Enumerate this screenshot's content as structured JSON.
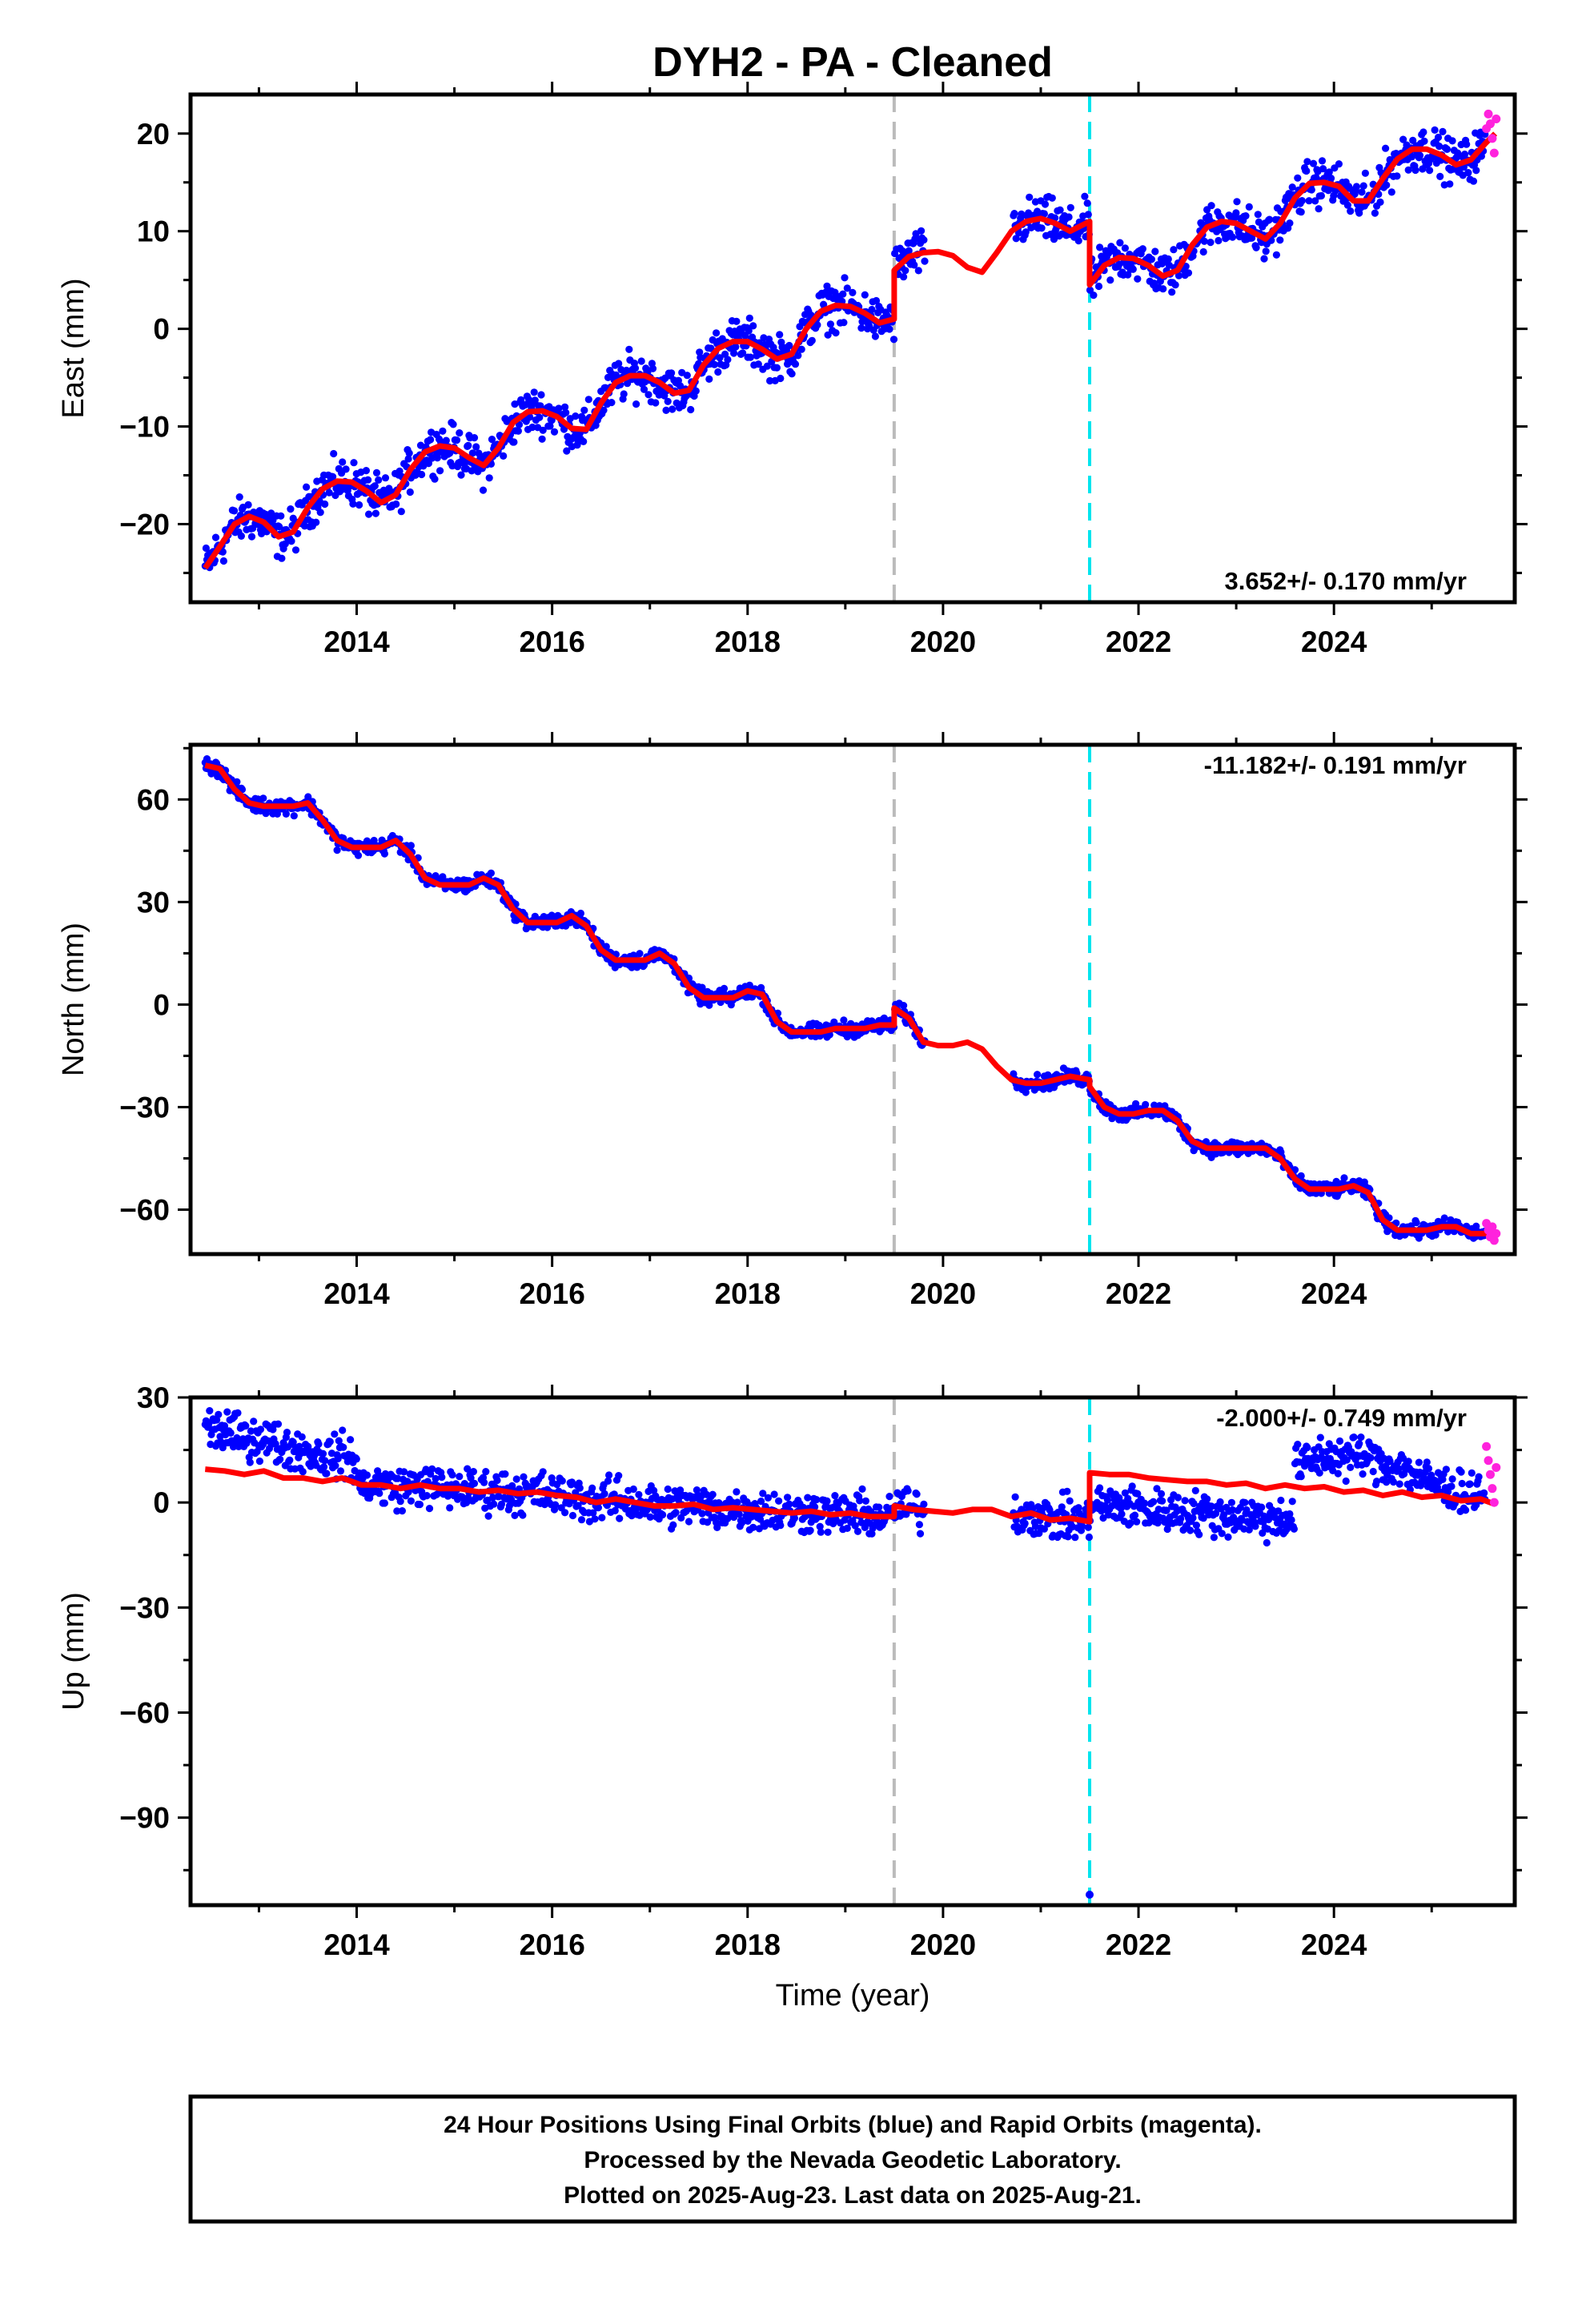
{
  "title": "DYH2  - PA - Cleaned",
  "footer": {
    "lines": [
      "24 Hour Positions Using Final Orbits (blue) and Rapid Orbits (magenta).",
      "Processed by the Nevada Geodetic Laboratory.",
      "Plotted on 2025-Aug-23. Last data on 2025-Aug-21."
    ]
  },
  "colors": {
    "final": "#0000ff",
    "rapid": "#ff22dd",
    "model": "#ff0000",
    "event_gray": "#bbbbbb",
    "event_cyan": "#00e5ee"
  },
  "chart_data": [
    {
      "type": "scatter",
      "ylabel": "East (mm)",
      "xlabel": "",
      "xlim": [
        2012.3,
        2025.85
      ],
      "ylim": [
        -28,
        24
      ],
      "yticks": [
        20,
        10,
        0,
        -10,
        -20
      ],
      "xticks": [
        2014,
        2016,
        2018,
        2020,
        2022,
        2024
      ],
      "rate_label": "3.652+/- 0.170 mm/yr",
      "rate_position": "bottom-right",
      "event_lines": [
        {
          "x": 2019.5,
          "color": "gray",
          "style": "dashed"
        },
        {
          "x": 2021.5,
          "color": "cyan",
          "style": "dashed"
        }
      ],
      "model": {
        "x": [
          2012.45,
          2012.6,
          2012.75,
          2012.9,
          2013.05,
          2013.2,
          2013.35,
          2013.5,
          2013.65,
          2013.8,
          2013.95,
          2014.1,
          2014.25,
          2014.4,
          2014.55,
          2014.7,
          2014.85,
          2015.0,
          2015.15,
          2015.3,
          2015.45,
          2015.6,
          2015.75,
          2015.9,
          2016.05,
          2016.2,
          2016.35,
          2016.5,
          2016.65,
          2016.8,
          2016.95,
          2017.1,
          2017.25,
          2017.4,
          2017.55,
          2017.7,
          2017.85,
          2018.0,
          2018.15,
          2018.3,
          2018.45,
          2018.6,
          2018.75,
          2018.9,
          2019.05,
          2019.2,
          2019.35,
          2019.5,
          2019.5,
          2019.65,
          2019.8,
          2019.95,
          2020.1,
          2020.25,
          2020.4,
          2020.55,
          2020.7,
          2020.85,
          2021.0,
          2021.15,
          2021.3,
          2021.5,
          2021.5,
          2021.65,
          2021.8,
          2021.95,
          2022.1,
          2022.25,
          2022.4,
          2022.55,
          2022.7,
          2022.85,
          2023.0,
          2023.15,
          2023.3,
          2023.45,
          2023.6,
          2023.75,
          2023.9,
          2024.05,
          2024.2,
          2024.35,
          2024.5,
          2024.65,
          2024.8,
          2024.95,
          2025.1,
          2025.25,
          2025.4,
          2025.55,
          2025.65
        ],
        "y": [
          -24.5,
          -22.3,
          -20.0,
          -19.2,
          -19.8,
          -21.3,
          -20.8,
          -18.3,
          -16.4,
          -15.6,
          -15.7,
          -16.6,
          -17.8,
          -17.0,
          -14.4,
          -12.6,
          -12.0,
          -12.2,
          -13.2,
          -14.0,
          -12.2,
          -9.6,
          -8.5,
          -8.4,
          -9.0,
          -10.2,
          -10.3,
          -7.6,
          -5.5,
          -4.8,
          -4.8,
          -5.5,
          -6.6,
          -6.3,
          -3.7,
          -2.0,
          -1.3,
          -1.3,
          -2.1,
          -3.1,
          -2.6,
          0.0,
          1.8,
          2.4,
          2.3,
          1.6,
          0.6,
          1.0,
          6.0,
          7.4,
          7.8,
          7.9,
          7.5,
          6.3,
          5.8,
          7.8,
          10.0,
          11.0,
          11.3,
          10.8,
          10.0,
          11.0,
          4.5,
          6.5,
          7.3,
          7.2,
          6.5,
          5.4,
          6.0,
          8.6,
          10.4,
          11.0,
          10.8,
          10.0,
          9.2,
          10.8,
          13.4,
          14.9,
          15.0,
          14.6,
          13.1,
          13.1,
          15.4,
          17.4,
          18.4,
          18.4,
          17.8,
          16.8,
          17.3,
          19.0,
          20.0
        ]
      },
      "rapid": {
        "x": [
          2025.56,
          2025.58,
          2025.6,
          2025.62,
          2025.64,
          2025.66
        ],
        "y": [
          20.5,
          22.0,
          21.0,
          19.5,
          18.0,
          21.5
        ]
      }
    },
    {
      "type": "scatter",
      "ylabel": "North (mm)",
      "xlabel": "",
      "xlim": [
        2012.3,
        2025.85
      ],
      "ylim": [
        -73,
        76
      ],
      "yticks": [
        60,
        30,
        0,
        -30,
        -60
      ],
      "xticks": [
        2014,
        2016,
        2018,
        2020,
        2022,
        2024
      ],
      "rate_label": "-11.182+/- 0.191 mm/yr",
      "rate_position": "top-right",
      "event_lines": [
        {
          "x": 2019.5,
          "color": "gray",
          "style": "dashed"
        },
        {
          "x": 2021.5,
          "color": "cyan",
          "style": "dashed"
        }
      ],
      "model": {
        "x": [
          2012.45,
          2012.6,
          2012.75,
          2012.9,
          2013.05,
          2013.2,
          2013.35,
          2013.5,
          2013.65,
          2013.8,
          2013.95,
          2014.1,
          2014.25,
          2014.4,
          2014.55,
          2014.7,
          2014.85,
          2015.0,
          2015.15,
          2015.3,
          2015.45,
          2015.6,
          2015.75,
          2015.9,
          2016.05,
          2016.2,
          2016.35,
          2016.5,
          2016.65,
          2016.8,
          2016.95,
          2017.1,
          2017.25,
          2017.4,
          2017.55,
          2017.7,
          2017.85,
          2018.0,
          2018.15,
          2018.3,
          2018.45,
          2018.6,
          2018.75,
          2018.9,
          2019.05,
          2019.2,
          2019.35,
          2019.5,
          2019.5,
          2019.65,
          2019.8,
          2019.95,
          2020.1,
          2020.25,
          2020.4,
          2020.55,
          2020.7,
          2020.85,
          2021.0,
          2021.15,
          2021.3,
          2021.5,
          2021.5,
          2021.65,
          2021.8,
          2021.95,
          2022.1,
          2022.25,
          2022.4,
          2022.55,
          2022.7,
          2022.85,
          2023.0,
          2023.15,
          2023.3,
          2023.45,
          2023.6,
          2023.75,
          2023.9,
          2024.05,
          2024.2,
          2024.35,
          2024.5,
          2024.65,
          2024.8,
          2024.95,
          2025.1,
          2025.25,
          2025.4,
          2025.55,
          2025.65
        ],
        "y": [
          70,
          69,
          63,
          59,
          58,
          58,
          58,
          59,
          54,
          48,
          46,
          46,
          46,
          48,
          44,
          37,
          35,
          35,
          35,
          37,
          35,
          28,
          24,
          24,
          24,
          26,
          23,
          16,
          13,
          13,
          13,
          15,
          12,
          5,
          2,
          2,
          2,
          4,
          3,
          -5,
          -8,
          -8,
          -8,
          -7,
          -7,
          -7,
          -6,
          -6,
          -1,
          -4,
          -11,
          -12,
          -12,
          -11,
          -13,
          -18,
          -22,
          -23,
          -23,
          -22,
          -21,
          -22,
          -24,
          -30,
          -32,
          -32,
          -31,
          -31,
          -34,
          -40,
          -42,
          -42,
          -42,
          -42,
          -42,
          -45,
          -51,
          -54,
          -54,
          -54,
          -53,
          -55,
          -63,
          -66,
          -66,
          -66,
          -65,
          -65,
          -67,
          -67,
          -67
        ]
      },
      "rapid": {
        "x": [
          2025.56,
          2025.58,
          2025.6,
          2025.62,
          2025.64,
          2025.66
        ],
        "y": [
          -64,
          -66,
          -68,
          -65,
          -69,
          -67
        ]
      }
    },
    {
      "type": "scatter",
      "ylabel": "Up (mm)",
      "xlabel": "Time (year)",
      "xlim": [
        2012.3,
        2025.85
      ],
      "ylim": [
        -115,
        30
      ],
      "yticks": [
        30,
        0,
        -30,
        -60,
        -90
      ],
      "xticks": [
        2014,
        2016,
        2018,
        2020,
        2022,
        2024
      ],
      "rate_label": "-2.000+/- 0.749 mm/yr",
      "rate_position": "top-right",
      "event_lines": [
        {
          "x": 2019.5,
          "color": "gray",
          "style": "dashed"
        },
        {
          "x": 2021.5,
          "color": "cyan",
          "style": "dashed"
        }
      ],
      "outlier": {
        "x": 2021.5,
        "y": -112
      },
      "model": {
        "x": [
          2012.45,
          2012.65,
          2012.85,
          2013.05,
          2013.25,
          2013.45,
          2013.65,
          2013.85,
          2014.05,
          2014.25,
          2014.45,
          2014.65,
          2014.85,
          2015.05,
          2015.25,
          2015.45,
          2015.65,
          2015.85,
          2016.05,
          2016.25,
          2016.45,
          2016.65,
          2016.85,
          2017.05,
          2017.25,
          2017.45,
          2017.65,
          2017.85,
          2018.05,
          2018.25,
          2018.45,
          2018.65,
          2018.85,
          2019.05,
          2019.25,
          2019.5,
          2019.5,
          2019.7,
          2019.9,
          2020.1,
          2020.3,
          2020.5,
          2020.7,
          2020.9,
          2021.1,
          2021.3,
          2021.5,
          2021.5,
          2021.7,
          2021.9,
          2022.1,
          2022.3,
          2022.5,
          2022.7,
          2022.9,
          2023.1,
          2023.3,
          2023.5,
          2023.7,
          2023.9,
          2024.1,
          2024.3,
          2024.5,
          2024.7,
          2024.9,
          2025.1,
          2025.3,
          2025.5,
          2025.65
        ],
        "y": [
          9.5,
          9.0,
          8.0,
          9.0,
          7.0,
          7.0,
          6.0,
          7.0,
          5.0,
          5.0,
          4.0,
          5.0,
          4.0,
          4.0,
          3.0,
          3.5,
          2.5,
          3.0,
          2.0,
          1.5,
          0.0,
          1.0,
          0.0,
          -1.0,
          -1.0,
          -0.5,
          -2.0,
          -1.5,
          -2.0,
          -2.5,
          -3.0,
          -2.5,
          -3.5,
          -3.0,
          -4.0,
          -4.0,
          -1.0,
          -2.0,
          -2.5,
          -3.0,
          -2.0,
          -2.0,
          -4.0,
          -3.0,
          -5.0,
          -4.5,
          -5.5,
          8.5,
          8.0,
          8.0,
          7.0,
          6.5,
          6.0,
          6.0,
          5.0,
          5.5,
          4.0,
          5.0,
          4.0,
          4.5,
          3.0,
          3.5,
          2.0,
          3.0,
          1.5,
          2.0,
          0.5,
          1.0,
          -0.5
        ]
      },
      "rapid": {
        "x": [
          2025.56,
          2025.58,
          2025.6,
          2025.62,
          2025.64,
          2025.66
        ],
        "y": [
          16,
          12,
          8,
          4,
          0,
          10
        ]
      }
    }
  ]
}
